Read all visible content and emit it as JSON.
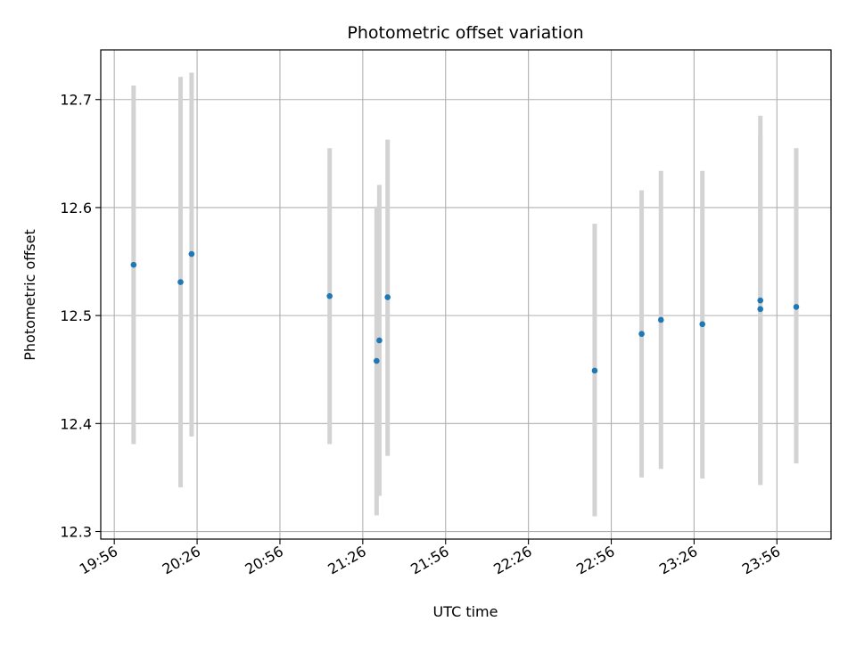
{
  "chart_data": {
    "type": "scatter",
    "title": "Photometric offset variation",
    "xlabel": "UTC time",
    "ylabel": "Photometric offset",
    "x_tick_labels": [
      "19:56",
      "20:26",
      "20:56",
      "21:26",
      "21:56",
      "22:26",
      "22:56",
      "23:26",
      "23:56"
    ],
    "x_tick_minutes": [
      1196,
      1226,
      1256,
      1286,
      1316,
      1346,
      1376,
      1406,
      1436
    ],
    "xlim_minutes": [
      1191.1,
      1455.6
    ],
    "y_tick_labels": [
      "12.3",
      "12.4",
      "12.5",
      "12.6",
      "12.7"
    ],
    "y_ticks": [
      12.3,
      12.4,
      12.5,
      12.6,
      12.7
    ],
    "ylim": [
      12.293,
      12.746
    ],
    "grid": true,
    "marker_color": "#1f77b4",
    "errorbar_color": "#d3d3d3",
    "points": [
      {
        "t": "20:03",
        "y": 12.547,
        "ylow": 12.381,
        "yhigh": 12.713
      },
      {
        "t": "20:20",
        "y": 12.531,
        "ylow": 12.341,
        "yhigh": 12.721
      },
      {
        "t": "20:24",
        "y": 12.557,
        "ylow": 12.388,
        "yhigh": 12.725
      },
      {
        "t": "21:14",
        "y": 12.518,
        "ylow": 12.381,
        "yhigh": 12.655
      },
      {
        "t": "21:31",
        "y": 12.458,
        "ylow": 12.315,
        "yhigh": 12.601
      },
      {
        "t": "21:32",
        "y": 12.477,
        "ylow": 12.333,
        "yhigh": 12.621
      },
      {
        "t": "21:35",
        "y": 12.517,
        "ylow": 12.37,
        "yhigh": 12.663
      },
      {
        "t": "22:50",
        "y": 12.449,
        "ylow": 12.314,
        "yhigh": 12.585
      },
      {
        "t": "23:07",
        "y": 12.483,
        "ylow": 12.35,
        "yhigh": 12.616
      },
      {
        "t": "23:14",
        "y": 12.496,
        "ylow": 12.358,
        "yhigh": 12.634
      },
      {
        "t": "23:29",
        "y": 12.492,
        "ylow": 12.349,
        "yhigh": 12.634
      },
      {
        "t": "23:50",
        "y": 12.514,
        "ylow": 12.343,
        "yhigh": 12.685
      },
      {
        "t": "23:50",
        "y": 12.506,
        "ylow": 12.345,
        "yhigh": 12.667
      },
      {
        "t": "00:03",
        "y": 12.508,
        "ylow": 12.363,
        "yhigh": 12.655
      }
    ]
  }
}
